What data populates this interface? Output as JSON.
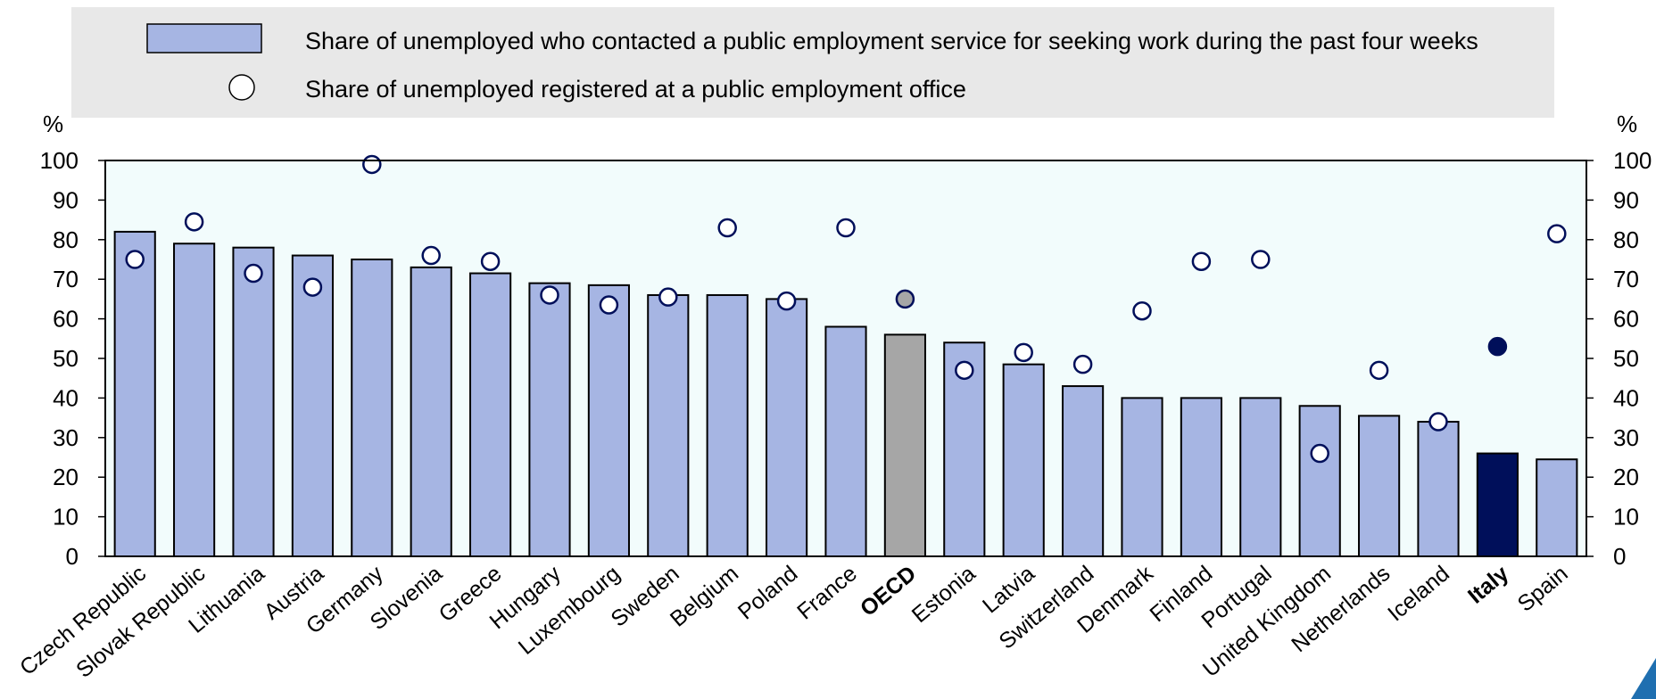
{
  "chart_data": {
    "type": "bar",
    "categories": [
      "Czech Republic",
      "Slovak Republic",
      "Lithuania",
      "Austria",
      "Germany",
      "Slovenia",
      "Greece",
      "Hungary",
      "Luxembourg",
      "Sweden",
      "Belgium",
      "Poland",
      "France",
      "OECD",
      "Estonia",
      "Latvia",
      "Switzerland",
      "Denmark",
      "Finland",
      "Portugal",
      "United Kingdom",
      "Netherlands",
      "Iceland",
      "Italy",
      "Spain"
    ],
    "series": [
      {
        "name": "Share of unemployed who contacted a public employment service for seeking work during the past four weeks",
        "values": [
          82,
          79,
          78,
          76,
          75,
          73,
          71.5,
          69,
          68.5,
          66,
          66,
          65,
          58,
          56,
          54,
          48.5,
          43,
          40,
          40,
          40,
          38,
          35.5,
          34,
          26,
          24.5
        ]
      },
      {
        "name": "Share of unemployed registered at a public employment office",
        "values": [
          75,
          84.5,
          71.5,
          68,
          99,
          76,
          74.5,
          66,
          63.5,
          65.5,
          83,
          64.5,
          83,
          65,
          47,
          51.5,
          48.5,
          62,
          74.5,
          75,
          26,
          47,
          34,
          53,
          81.5
        ]
      }
    ],
    "highlight": {
      "OECD": "#a6a6a6",
      "Italy": "#000f5a"
    },
    "bar_color": "#a6b5e3",
    "marker_color": "#000f5a",
    "highlight_label_colors": {
      "OECD": "#000000",
      "Italy": "#000f5a"
    },
    "ylabel_left": "%",
    "ylabel_right": "%",
    "ylim": [
      0,
      100
    ],
    "yticks": [
      0,
      10,
      20,
      30,
      40,
      50,
      60,
      70,
      80,
      90,
      100
    ],
    "plot_background": "#f2fcfc",
    "legend_background": "#e8e8e8",
    "legend_position": "top"
  }
}
